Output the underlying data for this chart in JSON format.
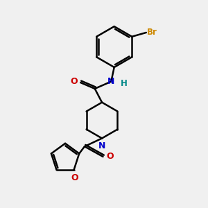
{
  "background_color": "#f0f0f0",
  "bond_color": "#000000",
  "nitrogen_color": "#0000cc",
  "oxygen_color": "#cc0000",
  "bromine_color": "#cc8800",
  "hydrogen_color": "#008888",
  "line_width": 1.8,
  "figsize": [
    3.0,
    3.0
  ],
  "dpi": 100,
  "xlim": [
    0,
    10
  ],
  "ylim": [
    0,
    10
  ]
}
